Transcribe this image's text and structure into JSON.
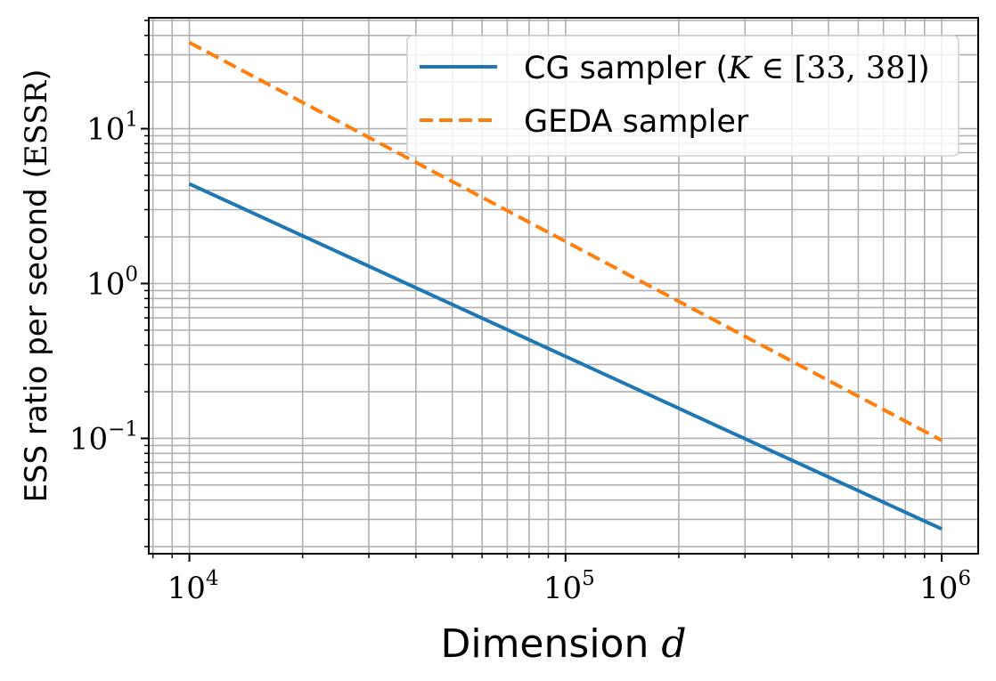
{
  "chart_data": {
    "type": "line",
    "xscale": "log",
    "yscale": "log",
    "xlim": [
      7800,
      1250000
    ],
    "ylim": [
      0.018,
      52
    ],
    "grid": true,
    "legend_position": "top-right",
    "xlabel": {
      "text": "Dimension ",
      "math": "d"
    },
    "ylabel": {
      "text": "ESS ratio per second (",
      "math": "ESSR",
      "suffix": ")"
    },
    "x_ticks": [
      {
        "value": 10000,
        "base": "10",
        "exp": "4"
      },
      {
        "value": 100000,
        "base": "10",
        "exp": "5"
      },
      {
        "value": 1000000,
        "base": "10",
        "exp": "6"
      }
    ],
    "y_ticks": [
      {
        "value": 0.1,
        "base": "10",
        "exp": "−1"
      },
      {
        "value": 1,
        "base": "10",
        "exp": "0"
      },
      {
        "value": 10,
        "base": "10",
        "exp": "1"
      }
    ],
    "series": [
      {
        "name": "CG sampler (K ∈ [33, 38])",
        "legend_text": "CG sampler (",
        "legend_math": "K",
        "legend_math_rest": " ∈ [33, 38]",
        "legend_suffix": ")",
        "color": "#1f77b4",
        "style": "solid",
        "x": [
          10000,
          1000000
        ],
        "y": [
          4.4,
          0.026
        ]
      },
      {
        "name": "GEDA sampler",
        "legend_text": "GEDA sampler",
        "color": "#ff7f0e",
        "style": "dashed",
        "x": [
          10000,
          1000000
        ],
        "y": [
          36,
          0.097
        ]
      }
    ]
  }
}
